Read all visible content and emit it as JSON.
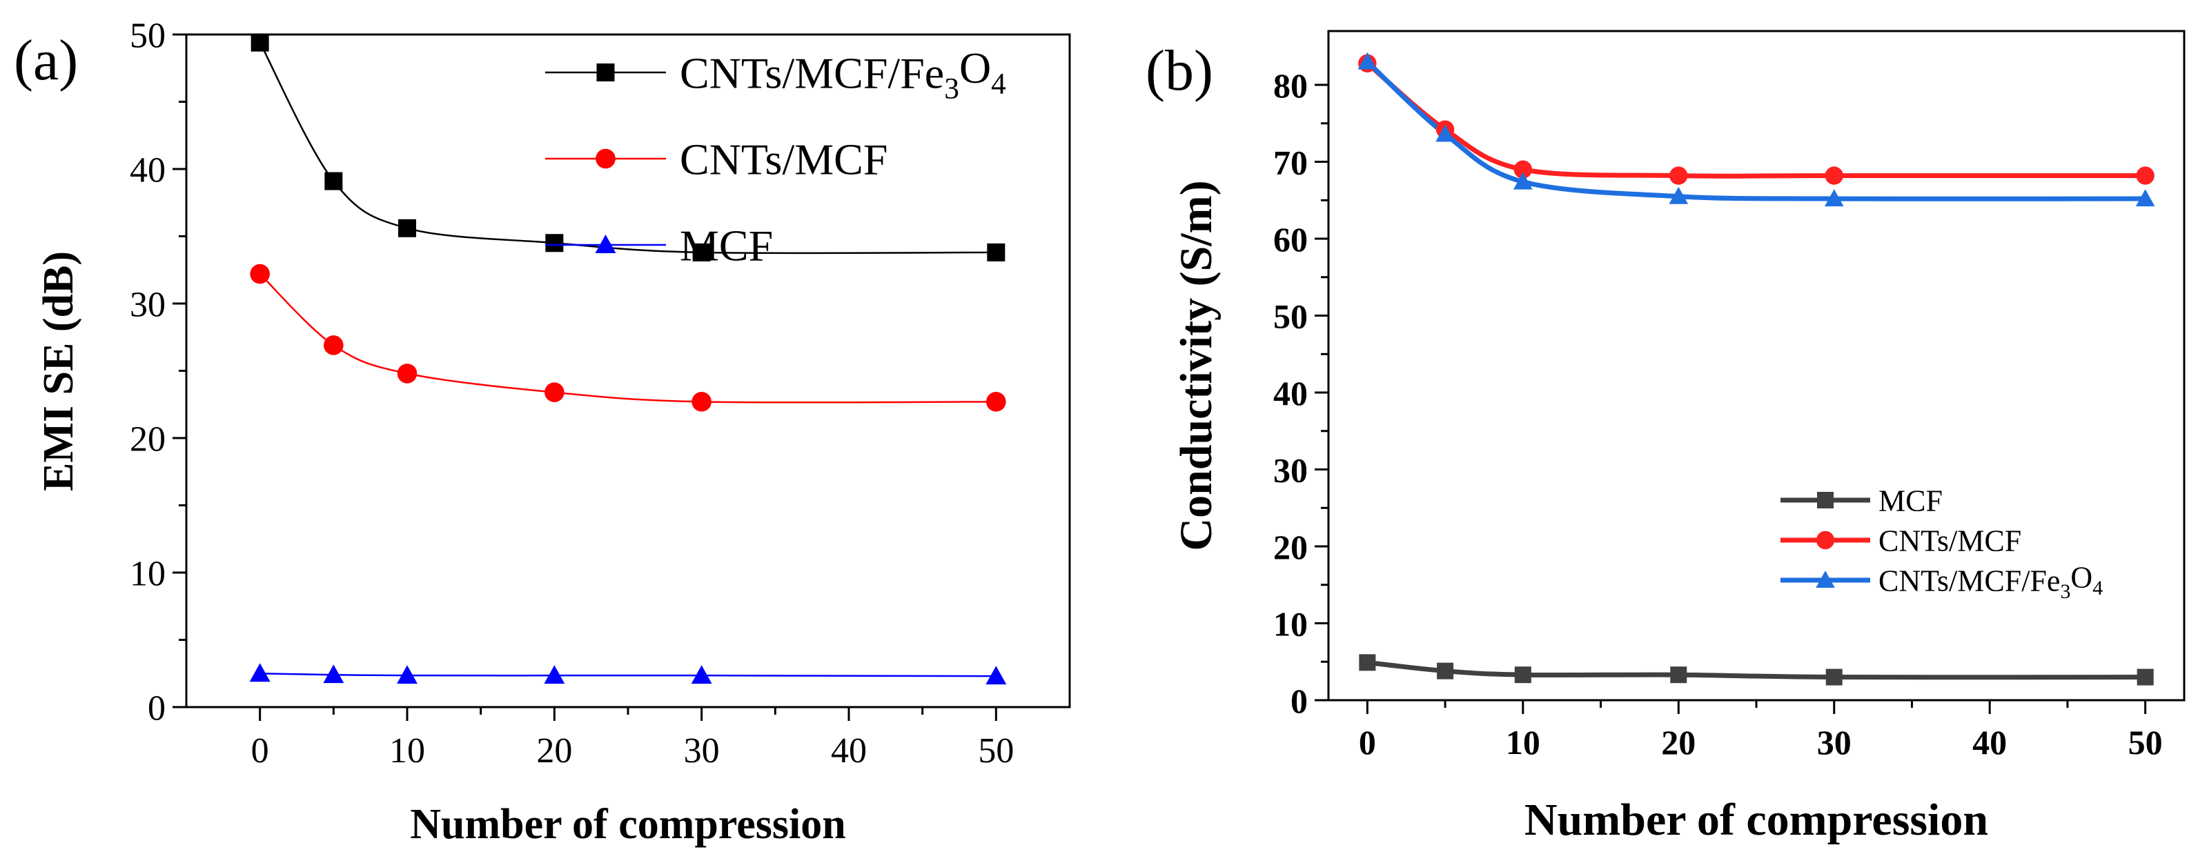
{
  "figure": {
    "panel_a_label": "(a)",
    "panel_b_label": "(b)"
  },
  "chart_data": [
    {
      "type": "line",
      "panel": "(a)",
      "title": "",
      "xlabel": "Number of compression",
      "ylabel": "EMI SE (dB)",
      "xlim": [
        -5,
        55
      ],
      "ylim": [
        0,
        50
      ],
      "xticks": [
        0,
        10,
        20,
        30,
        40,
        50
      ],
      "yticks": [
        0,
        10,
        20,
        30,
        40,
        50
      ],
      "x": [
        0,
        5,
        10,
        20,
        30,
        50
      ],
      "legend_position": "top-right",
      "series": [
        {
          "name": "CNTs/MCF/Fe3O4",
          "legend_main": "CNTs/MCF/Fe",
          "legend_sub1": "3",
          "legend_mid": "O",
          "legend_sub2": "4",
          "color": "#000000",
          "marker": "square",
          "values": [
            49.4,
            39.1,
            35.6,
            34.5,
            33.8,
            33.8
          ]
        },
        {
          "name": "CNTs/MCF",
          "color": "#ff0000",
          "marker": "circle",
          "values": [
            32.2,
            26.9,
            24.8,
            23.4,
            22.7,
            22.7
          ]
        },
        {
          "name": "MCF",
          "color": "#0000ff",
          "marker": "triangle",
          "values": [
            2.5,
            2.4,
            2.35,
            2.35,
            2.35,
            2.3
          ]
        }
      ]
    },
    {
      "type": "line",
      "panel": "(b)",
      "title": "",
      "xlabel": "Number of compression",
      "ylabel": "Conductivity (S/m)",
      "xlim": [
        -2.5,
        52.5
      ],
      "ylim": [
        0,
        87
      ],
      "xticks": [
        0,
        10,
        20,
        30,
        40,
        50
      ],
      "yticks": [
        0,
        10,
        20,
        30,
        40,
        50,
        60,
        70,
        80
      ],
      "x": [
        0,
        5,
        10,
        20,
        30,
        50
      ],
      "legend_position": "bottom-right",
      "series": [
        {
          "name": "MCF",
          "color": "#404040",
          "marker": "square",
          "values": [
            4.9,
            3.8,
            3.3,
            3.3,
            3.0,
            3.0
          ]
        },
        {
          "name": "CNTs/MCF",
          "color": "#ff2020",
          "marker": "circle",
          "values": [
            82.8,
            74.2,
            69.0,
            68.2,
            68.2,
            68.2
          ]
        },
        {
          "name": "CNTs/MCF/Fe3O4",
          "legend_main": "CNTs/MCF/Fe",
          "legend_sub1": "3",
          "legend_mid": "O",
          "legend_sub2": "4",
          "color": "#1f6fe0",
          "marker": "triangle",
          "values": [
            83.0,
            73.6,
            67.4,
            65.5,
            65.2,
            65.2
          ]
        }
      ]
    }
  ]
}
